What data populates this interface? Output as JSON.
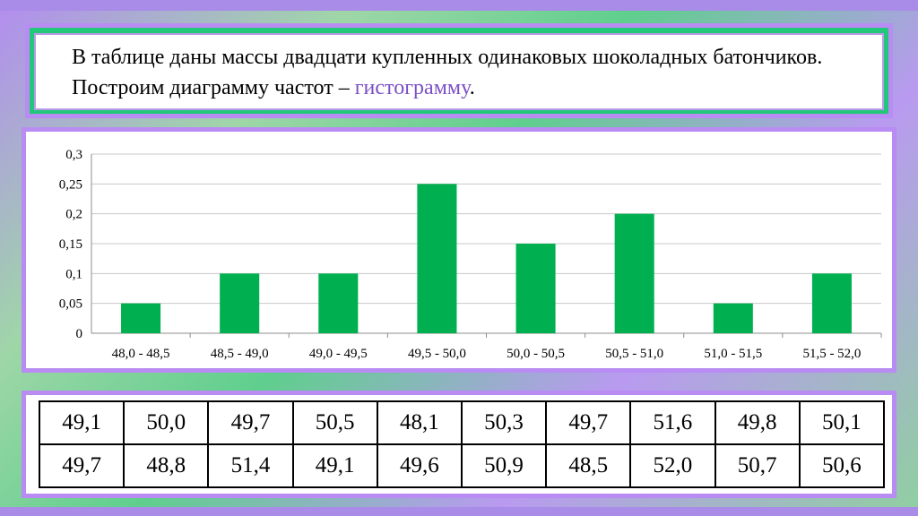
{
  "header": {
    "text_main": "В таблице даны массы двадцати купленных одинаковых шоколадных батончиков. Построим диаграмму частот – ",
    "text_highlight": "гистограмму",
    "text_end": "."
  },
  "colors": {
    "bar": "#00b050",
    "accent": "#7b4fc4",
    "frame": "#b88cf2"
  },
  "chart_data": {
    "type": "bar",
    "categories": [
      "48,0 - 48,5",
      "48,5 -  49,0",
      "49,0 - 49,5",
      "49,5 - 50,0",
      "50,0 - 50,5",
      "50,5 - 51,0",
      "51,0 - 51,5",
      "51,5 - 52,0"
    ],
    "values": [
      0.05,
      0.1,
      0.1,
      0.25,
      0.15,
      0.2,
      0.05,
      0.1
    ],
    "yticks": [
      "0",
      "0,05",
      "0,1",
      "0,15",
      "0,2",
      "0,25",
      "0,3"
    ],
    "ylim": [
      0,
      0.3
    ],
    "grid": true,
    "title": "",
    "xlabel": "",
    "ylabel": ""
  },
  "table": {
    "rows": [
      [
        "49,1",
        "50,0",
        "49,7",
        "50,5",
        "48,1",
        "50,3",
        "49,7",
        "51,6",
        "49,8",
        "50,1"
      ],
      [
        "49,7",
        "48,8",
        "51,4",
        "49,1",
        "49,6",
        "50,9",
        "48,5",
        "52,0",
        "50,7",
        "50,6"
      ]
    ]
  }
}
